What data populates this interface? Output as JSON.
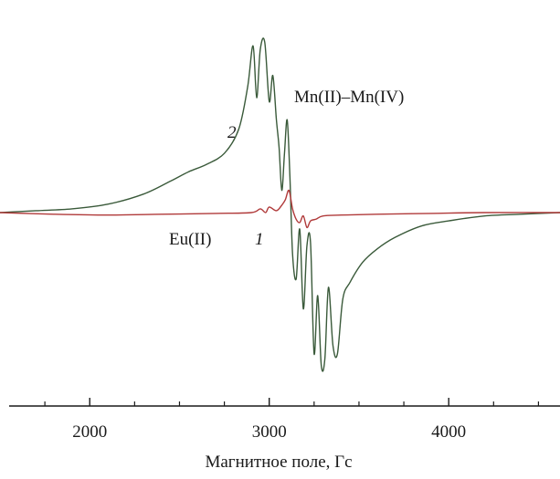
{
  "chart_data": {
    "type": "line",
    "xlabel": "Магнитное поле, Гс",
    "ylabel": "",
    "xlim": [
      1500,
      4620
    ],
    "ylim": [
      -1.0,
      1.0
    ],
    "x_ticks_major": [
      2000,
      3000,
      4000
    ],
    "x_ticks_minor": [
      1500,
      1750,
      2250,
      2500,
      2750,
      3250,
      3500,
      3750,
      4250,
      4500
    ],
    "grid": false,
    "legend": "none",
    "annotations": {
      "signal_label": "Mn(II)–Mn(IV)",
      "eu_label": "Eu(II)",
      "curve1_label": "1",
      "curve2_label": "2"
    },
    "series": [
      {
        "color": "#3a5a3a",
        "x": [
          1500,
          1700,
          1900,
          2100,
          2300,
          2450,
          2550,
          2650,
          2750,
          2830,
          2880,
          2910,
          2930,
          2950,
          2975,
          3000,
          3020,
          3040,
          3055,
          3070,
          3085,
          3100,
          3115,
          3130,
          3150,
          3170,
          3190,
          3210,
          3230,
          3250,
          3270,
          3290,
          3310,
          3330,
          3355,
          3380,
          3410,
          3450,
          3520,
          3600,
          3700,
          3850,
          4000,
          4200,
          4400,
          4620
        ],
        "y": [
          0.0,
          0.01,
          0.02,
          0.045,
          0.1,
          0.17,
          0.22,
          0.26,
          0.32,
          0.45,
          0.68,
          0.9,
          0.62,
          0.88,
          0.92,
          0.6,
          0.74,
          0.5,
          0.35,
          0.12,
          0.32,
          0.5,
          0.2,
          -0.25,
          -0.4,
          -0.1,
          -0.58,
          -0.2,
          -0.18,
          -0.85,
          -0.5,
          -0.92,
          -0.88,
          -0.45,
          -0.8,
          -0.85,
          -0.52,
          -0.42,
          -0.3,
          -0.22,
          -0.15,
          -0.08,
          -0.05,
          -0.02,
          -0.01,
          0.0
        ]
      },
      {
        "color": "#b03a3a",
        "x": [
          1500,
          1800,
          2100,
          2400,
          2700,
          2900,
          2950,
          2980,
          3000,
          3040,
          3070,
          3090,
          3110,
          3130,
          3150,
          3170,
          3190,
          3210,
          3230,
          3260,
          3300,
          3400,
          3600,
          3900,
          4200,
          4620
        ],
        "y": [
          0.0,
          -0.01,
          -0.015,
          -0.01,
          -0.005,
          0.0,
          0.02,
          0.0,
          0.03,
          0.01,
          0.04,
          0.07,
          0.12,
          0.02,
          -0.04,
          -0.06,
          -0.02,
          -0.09,
          -0.05,
          -0.04,
          -0.02,
          -0.015,
          -0.01,
          -0.005,
          0.0,
          0.0
        ]
      }
    ]
  }
}
